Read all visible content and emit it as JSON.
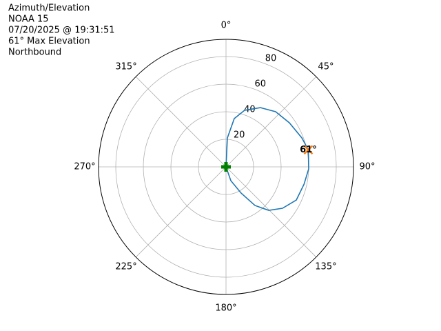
{
  "chart_data": {
    "type": "polar",
    "title_lines": [
      "Azimuth/Elevation",
      "NOAA 15",
      "07/20/2025 @ 19:31:51",
      "61° Max Elevation",
      "Northbound"
    ],
    "rlim": [
      0,
      92.5
    ],
    "rticks": [
      20,
      40,
      60,
      80
    ],
    "thetaticks": [
      {
        "value": 0,
        "label": "0°"
      },
      {
        "value": 45,
        "label": "45°"
      },
      {
        "value": 90,
        "label": "90°"
      },
      {
        "value": 135,
        "label": "135°"
      },
      {
        "value": 180,
        "label": "180°"
      },
      {
        "value": 225,
        "label": "225°"
      },
      {
        "value": 270,
        "label": "270°"
      },
      {
        "value": 315,
        "label": "315°"
      }
    ],
    "grid": true,
    "series": [
      {
        "color": "#1f77b4",
        "theta": [
          0,
          2.7,
          9.7,
          18.2,
          30.2,
          42.0,
          55.2,
          69.1,
          78.3,
          91.4,
          102.5,
          115.2,
          126.2,
          135.5,
          143.1,
          150.0,
          160.7,
          0
        ],
        "r": [
          0,
          21.0,
          35.5,
          43.2,
          49.7,
          53.8,
          56.0,
          58.9,
          61.0,
          60.0,
          58.0,
          56.4,
          50.8,
          44.2,
          35.0,
          22.0,
          10.6,
          0
        ]
      }
    ],
    "max_point": {
      "theta": 78.3,
      "r": 61,
      "color": "#ff7f0e"
    },
    "endpoints": {
      "theta": [
        0,
        0
      ],
      "r": [
        0,
        0
      ],
      "color": "#008000"
    },
    "annotation": {
      "text": "61°",
      "theta": 78.3,
      "r": 61
    }
  }
}
